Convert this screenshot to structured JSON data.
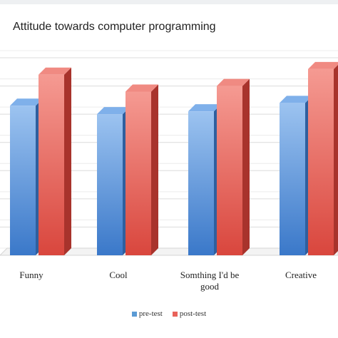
{
  "chart_data": {
    "type": "bar",
    "title": "Attitude towards computer programming",
    "categories": [
      "Funny",
      "Cool",
      "Somthing I'd be good",
      "Creative"
    ],
    "category_lines": [
      [
        "Funny"
      ],
      [
        "Cool"
      ],
      [
        "Somthing I'd be",
        "good"
      ],
      [
        "Creative"
      ]
    ],
    "series": [
      {
        "name": "pre-test",
        "values": [
          0.53,
          0.5,
          0.51,
          0.54
        ],
        "color": "#5b9bd5"
      },
      {
        "name": "post-test",
        "values": [
          0.64,
          0.58,
          0.6,
          0.66
        ],
        "color": "#e8625a"
      }
    ],
    "xlabel": "",
    "ylabel": "",
    "ylim": [
      0,
      0.7
    ],
    "grid": true,
    "legend": "bottom",
    "style": "3d-columns"
  }
}
